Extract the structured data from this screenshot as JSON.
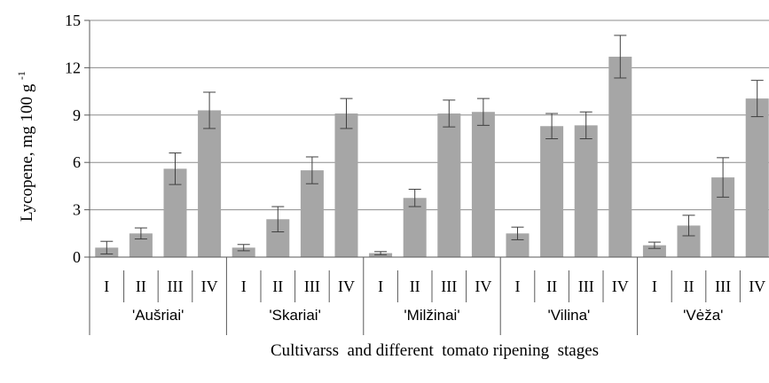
{
  "chart_data": {
    "type": "bar",
    "ylabel": "Lycopene, mg 100 g",
    "ylabel_superscript": "-1",
    "xlabel": "Cultivarss  and different  tomato ripening  stages",
    "ylim": [
      0,
      15
    ],
    "yticks": [
      0,
      3,
      6,
      9,
      12,
      15
    ],
    "grid": true,
    "legend": "none",
    "bar_color": "#a6a6a6",
    "error_color": "#404040",
    "groups": [
      {
        "name": "'Aušriai'",
        "categories": [
          "I",
          "II",
          "III",
          "IV"
        ],
        "values": [
          0.6,
          1.5,
          5.6,
          9.3
        ],
        "errors": [
          0.4,
          0.35,
          1.0,
          1.15
        ]
      },
      {
        "name": "'Skariai'",
        "categories": [
          "I",
          "II",
          "III",
          "IV"
        ],
        "values": [
          0.6,
          2.4,
          5.5,
          9.1
        ],
        "errors": [
          0.2,
          0.8,
          0.85,
          0.95
        ]
      },
      {
        "name": "'Milžinai'",
        "categories": [
          "I",
          "II",
          "III",
          "IV"
        ],
        "values": [
          0.25,
          3.75,
          9.1,
          9.2
        ],
        "errors": [
          0.1,
          0.55,
          0.85,
          0.85
        ]
      },
      {
        "name": "'Vilina'",
        "categories": [
          "I",
          "II",
          "III",
          "IV"
        ],
        "values": [
          1.5,
          8.3,
          8.35,
          12.7
        ],
        "errors": [
          0.4,
          0.8,
          0.85,
          1.35
        ]
      },
      {
        "name": "'Vėža'",
        "categories": [
          "I",
          "II",
          "III",
          "IV"
        ],
        "values": [
          0.75,
          2.0,
          5.05,
          10.05
        ],
        "errors": [
          0.2,
          0.65,
          1.25,
          1.15
        ]
      }
    ]
  }
}
